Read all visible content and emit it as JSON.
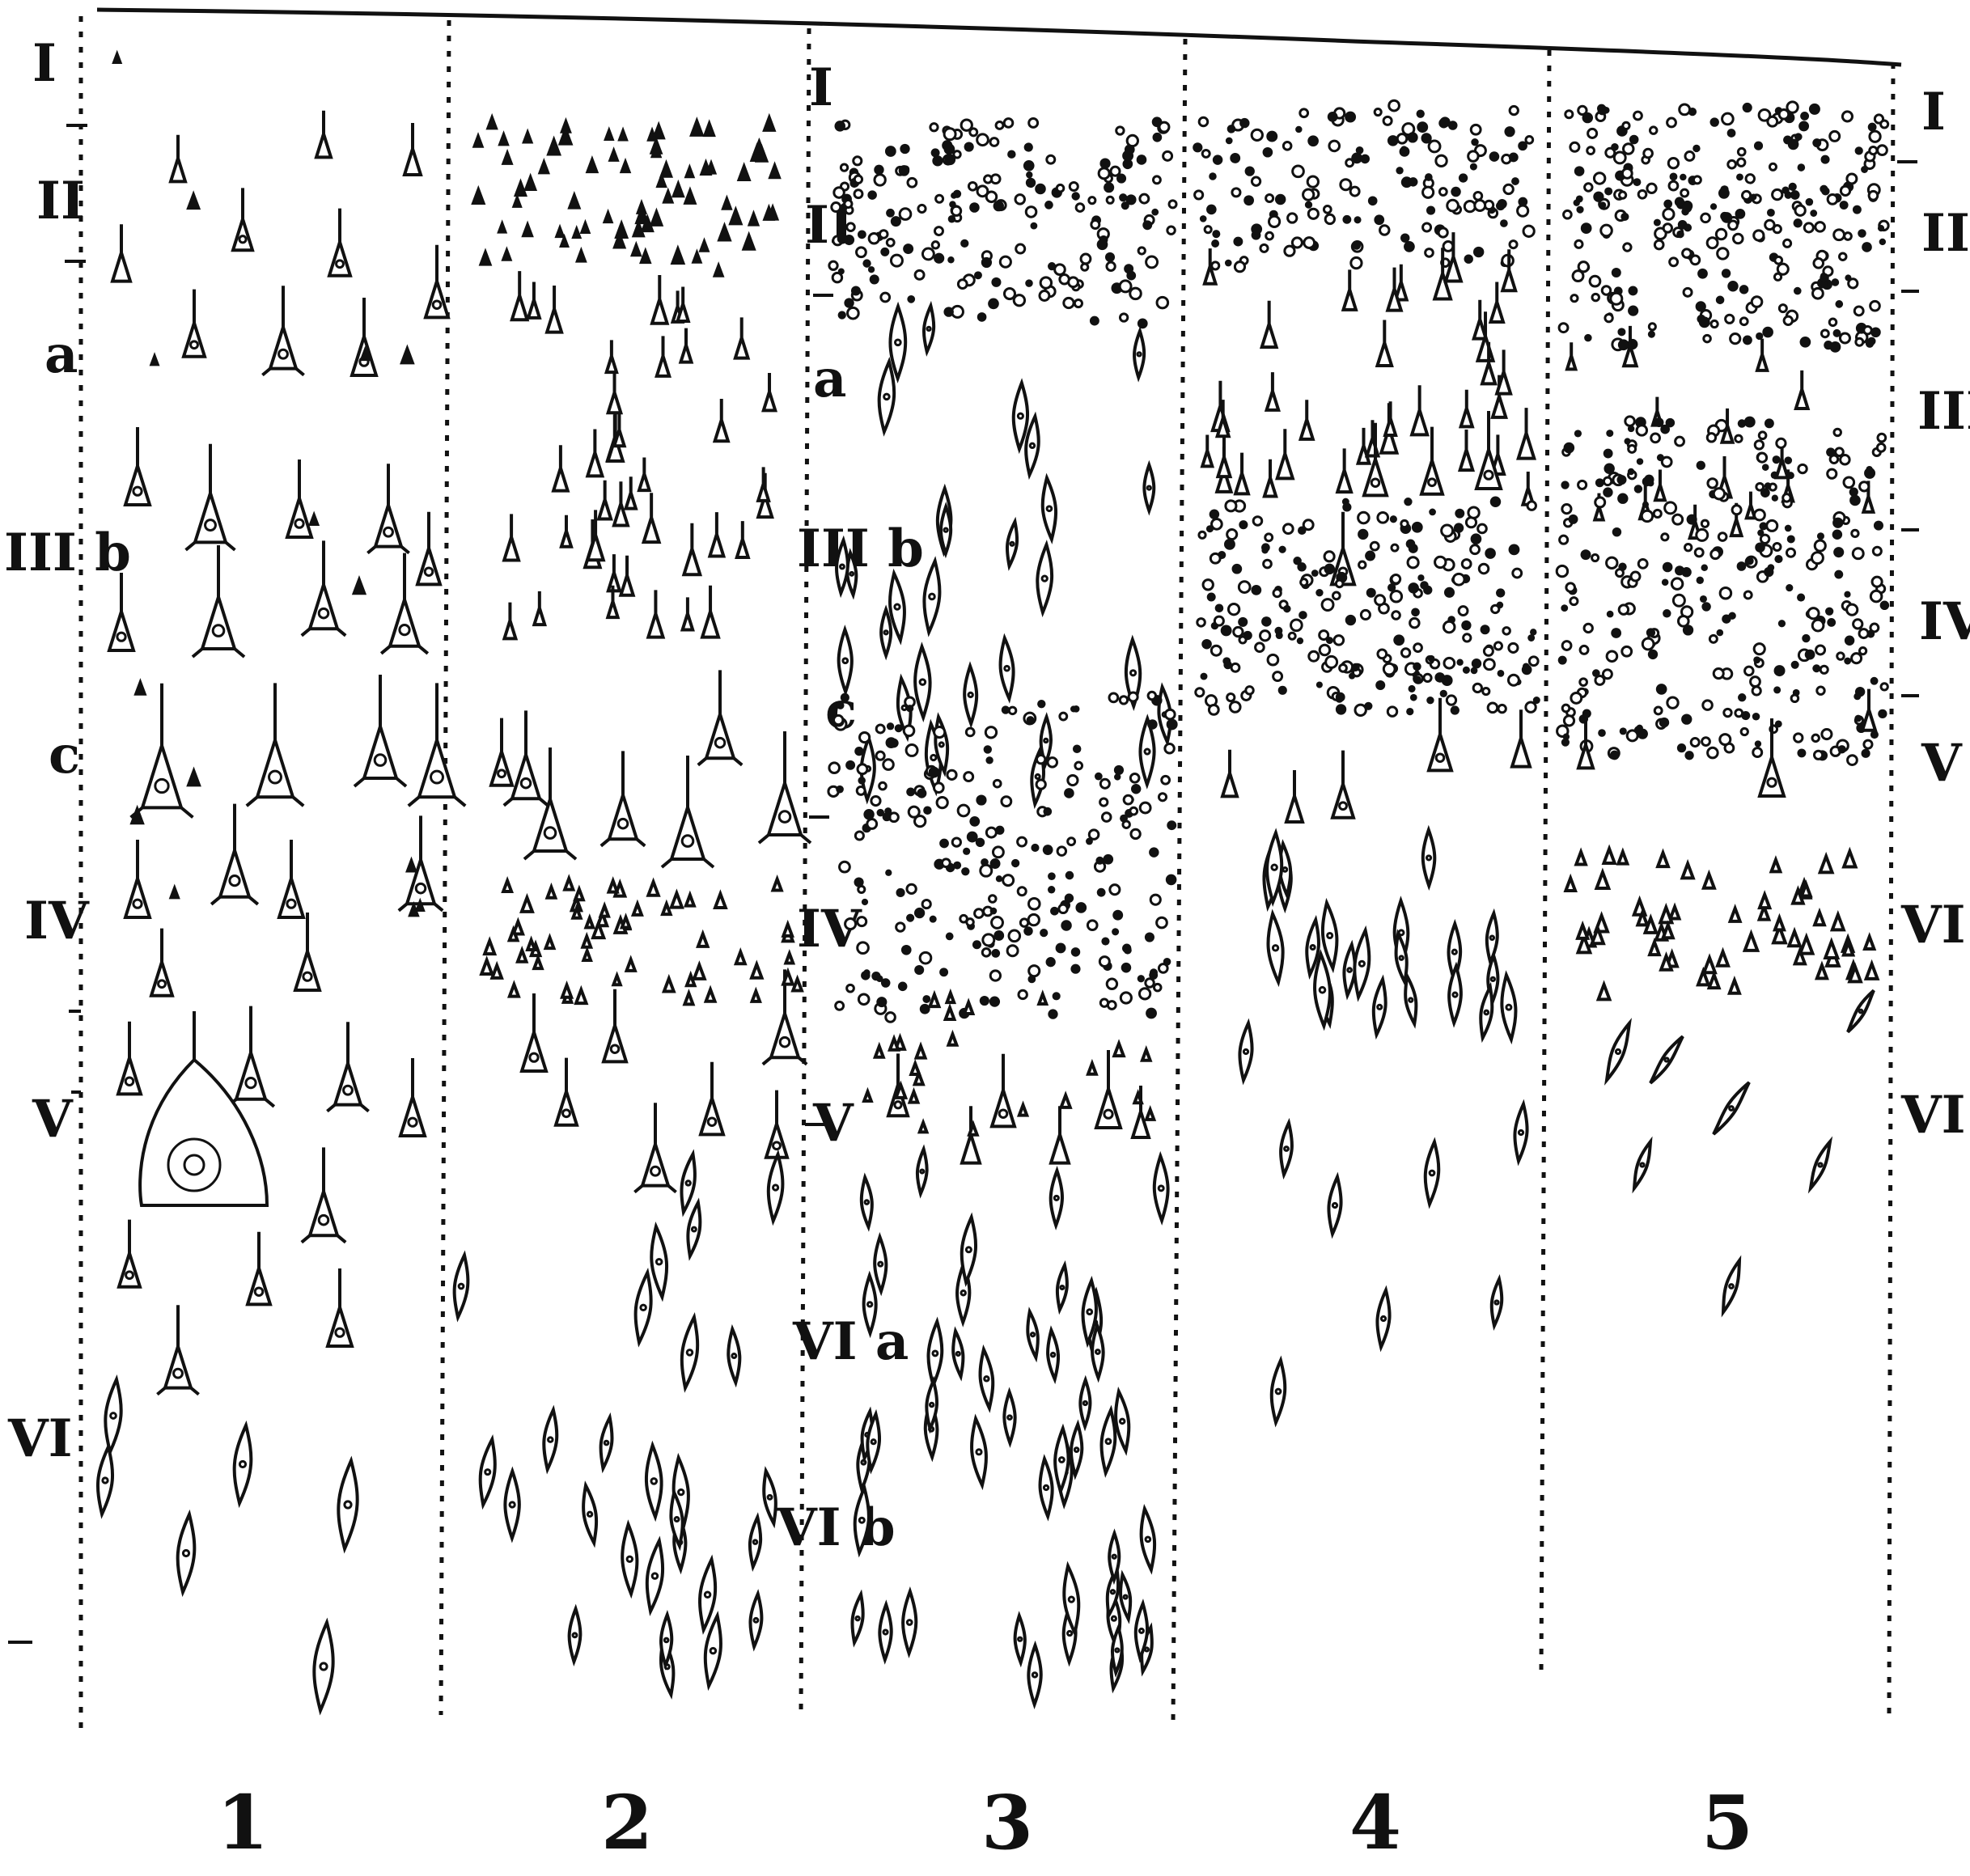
{
  "figure": {
    "left_labels": [
      "I",
      "II",
      "a",
      "III b",
      "c",
      "IV",
      "V",
      "VI"
    ],
    "divider2_labels": [
      "I",
      "II",
      "a",
      "III b",
      "c",
      "IV",
      "V",
      "VI a",
      "VI b"
    ],
    "right_labels": [
      "I",
      "II",
      "III",
      "IV",
      "V",
      "VI a",
      "VI b"
    ],
    "column_numbers": [
      "1",
      "2",
      "3",
      "4",
      "5"
    ]
  },
  "colors": {
    "ink": "#111111",
    "paper": "#ffffff"
  }
}
